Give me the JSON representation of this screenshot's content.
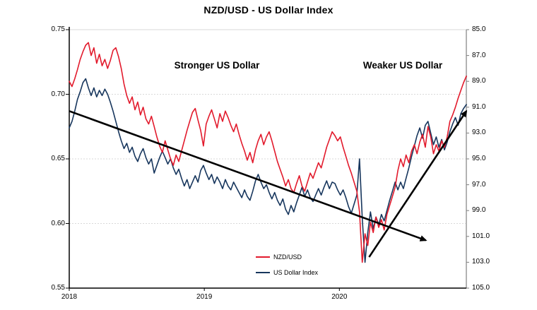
{
  "title": "NZD/USD - US Dollar Index",
  "annotations": {
    "stronger": "Stronger US Dollar",
    "weaker": "Weaker US Dollar"
  },
  "colors": {
    "nzdusd": "#e21a2c",
    "usd_index": "#17365d",
    "trend": "#000000",
    "gridline": "#d9d9d9",
    "axis_left_bottom": "#000000",
    "axis_right": "#b3b3b3",
    "background": "#ffffff"
  },
  "chart_data": {
    "type": "line",
    "title": "NZD/USD - US Dollar Index",
    "grid": "horizontal-dashed",
    "legend_position": "bottom-center-inside",
    "x_axis": {
      "range": [
        2018.0,
        2020.94
      ],
      "years": [
        {
          "label": "2018",
          "x": 2018
        },
        {
          "label": "2019",
          "x": 2019
        },
        {
          "label": "2020",
          "x": 2020
        }
      ]
    },
    "left_axis": {
      "min": 0.55,
      "max": 0.75,
      "ticks": [
        {
          "label": "0.75",
          "value": 0.75
        },
        {
          "label": "0.70",
          "value": 0.7
        },
        {
          "label": "0.65",
          "value": 0.65
        },
        {
          "label": "0.60",
          "value": 0.6
        },
        {
          "label": "0.55",
          "value": 0.55
        }
      ]
    },
    "right_axis": {
      "min": 85.0,
      "max": 105.0,
      "inverted": true,
      "ticks": [
        {
          "label": "85.0",
          "value": 85.0
        },
        {
          "label": "87.0",
          "value": 87.0
        },
        {
          "label": "89.0",
          "value": 89.0
        },
        {
          "label": "91.0",
          "value": 91.0
        },
        {
          "label": "93.0",
          "value": 93.0
        },
        {
          "label": "95.0",
          "value": 95.0
        },
        {
          "label": "97.0",
          "value": 97.0
        },
        {
          "label": "99.0",
          "value": 99.0
        },
        {
          "label": "101.0",
          "value": 101.0
        },
        {
          "label": "103.0",
          "value": 103.0
        },
        {
          "label": "105.0",
          "value": 105.0
        }
      ]
    },
    "gridlines_left_values": [
      0.75,
      0.7,
      0.65,
      0.6
    ],
    "series": [
      {
        "name": "US Dollar Index",
        "axis": "right",
        "color": "#17365d",
        "values": [
          92.6,
          92.1,
          91.3,
          90.4,
          89.8,
          89.1,
          88.8,
          89.5,
          90.1,
          89.5,
          90.2,
          89.7,
          90.1,
          89.6,
          90.0,
          90.6,
          91.3,
          92.1,
          92.9,
          93.6,
          94.2,
          93.8,
          94.5,
          94.1,
          94.8,
          95.2,
          94.6,
          94.2,
          94.9,
          95.4,
          95.0,
          96.1,
          95.5,
          94.9,
          94.4,
          94.9,
          95.4,
          95.0,
          95.7,
          96.2,
          95.8,
          96.5,
          97.1,
          96.6,
          97.3,
          96.8,
          96.3,
          96.8,
          95.9,
          95.5,
          96.1,
          96.6,
          96.2,
          96.9,
          96.4,
          96.8,
          97.3,
          96.6,
          97.1,
          97.4,
          96.8,
          97.2,
          97.6,
          98.0,
          97.4,
          97.9,
          98.2,
          97.5,
          96.7,
          96.2,
          96.8,
          97.3,
          97.0,
          97.6,
          98.1,
          97.6,
          98.2,
          98.6,
          98.1,
          98.9,
          99.3,
          98.6,
          99.1,
          98.4,
          97.8,
          97.2,
          97.9,
          97.4,
          98.0,
          98.3,
          97.8,
          97.3,
          97.8,
          97.2,
          96.7,
          97.3,
          96.8,
          96.9,
          97.4,
          97.8,
          97.4,
          98.0,
          98.7,
          99.2,
          98.5,
          97.8,
          95.0,
          99.6,
          103.0,
          100.7,
          99.1,
          100.4,
          99.5,
          100.1,
          99.3,
          99.8,
          99.0,
          98.2,
          97.5,
          96.8,
          97.4,
          96.8,
          97.3,
          96.5,
          95.7,
          94.8,
          94.0,
          93.2,
          92.6,
          93.4,
          92.4,
          92.1,
          93.0,
          93.9,
          93.3,
          94.1,
          93.5,
          94.3,
          93.7,
          92.9,
          92.3,
          91.8,
          92.4,
          91.5,
          91.1,
          90.8
        ]
      },
      {
        "name": "NZD/USD",
        "axis": "left",
        "color": "#e21a2c",
        "values": [
          0.71,
          0.706,
          0.712,
          0.719,
          0.727,
          0.733,
          0.738,
          0.74,
          0.73,
          0.736,
          0.724,
          0.731,
          0.722,
          0.727,
          0.72,
          0.726,
          0.734,
          0.736,
          0.729,
          0.72,
          0.708,
          0.699,
          0.693,
          0.698,
          0.688,
          0.694,
          0.684,
          0.69,
          0.681,
          0.677,
          0.683,
          0.675,
          0.667,
          0.66,
          0.655,
          0.664,
          0.657,
          0.65,
          0.645,
          0.653,
          0.648,
          0.656,
          0.664,
          0.672,
          0.679,
          0.686,
          0.689,
          0.68,
          0.672,
          0.66,
          0.677,
          0.683,
          0.688,
          0.681,
          0.674,
          0.685,
          0.679,
          0.687,
          0.682,
          0.676,
          0.671,
          0.677,
          0.669,
          0.662,
          0.656,
          0.649,
          0.655,
          0.647,
          0.657,
          0.664,
          0.669,
          0.661,
          0.667,
          0.671,
          0.664,
          0.656,
          0.648,
          0.642,
          0.636,
          0.629,
          0.634,
          0.627,
          0.624,
          0.631,
          0.637,
          0.629,
          0.625,
          0.632,
          0.639,
          0.635,
          0.641,
          0.647,
          0.643,
          0.651,
          0.659,
          0.665,
          0.671,
          0.668,
          0.664,
          0.667,
          0.659,
          0.652,
          0.645,
          0.639,
          0.632,
          0.625,
          0.609,
          0.57,
          0.592,
          0.583,
          0.601,
          0.593,
          0.605,
          0.597,
          0.603,
          0.595,
          0.607,
          0.614,
          0.621,
          0.628,
          0.641,
          0.65,
          0.644,
          0.653,
          0.647,
          0.656,
          0.661,
          0.654,
          0.663,
          0.669,
          0.659,
          0.675,
          0.667,
          0.654,
          0.661,
          0.656,
          0.664,
          0.659,
          0.667,
          0.679,
          0.684,
          0.69,
          0.697,
          0.703,
          0.709,
          0.714
        ]
      }
    ],
    "trend_arrows": [
      {
        "x1": 2018.0,
        "v1": 0.687,
        "x2": 2020.64,
        "v2": 0.587
      },
      {
        "x1": 2020.22,
        "v1": 0.574,
        "x2": 2020.94,
        "v2": 0.687
      }
    ]
  },
  "legend": {
    "items": [
      {
        "label": "NZD/USD",
        "color": "#e21a2c"
      },
      {
        "label": "US Dollar Index",
        "color": "#17365d"
      }
    ]
  }
}
